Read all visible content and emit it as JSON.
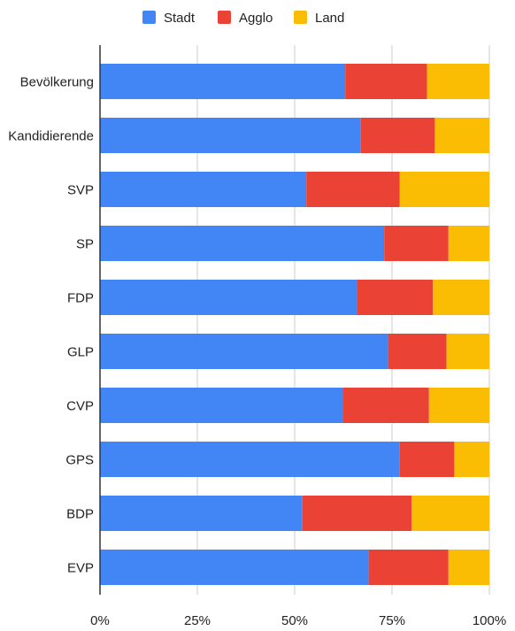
{
  "chart_data": {
    "type": "bar",
    "orientation": "horizontal",
    "stacked": "percent",
    "title": "",
    "xlabel": "",
    "ylabel": "",
    "xlim": [
      0,
      100
    ],
    "x_ticks": [
      "0%",
      "25%",
      "50%",
      "75%",
      "100%"
    ],
    "grid": true,
    "legend_position": "top",
    "categories": [
      "Bevölkerung",
      "Kandidierende",
      "SVP",
      "SP",
      "FDP",
      "GLP",
      "CVP",
      "GPS",
      "BDP",
      "EVP"
    ],
    "series": [
      {
        "name": "Stadt",
        "color": "#4285F4",
        "values": [
          63,
          67,
          53,
          73,
          66,
          74,
          62.5,
          77,
          52,
          69
        ]
      },
      {
        "name": "Agglo",
        "color": "#EA4335",
        "values": [
          21,
          19,
          24,
          16.5,
          19.5,
          15,
          22,
          14,
          28,
          20.5
        ]
      },
      {
        "name": "Land",
        "color": "#FBBC04",
        "values": [
          16,
          14,
          23,
          10.5,
          14.5,
          11,
          15.5,
          9,
          20,
          10.5
        ]
      }
    ]
  }
}
